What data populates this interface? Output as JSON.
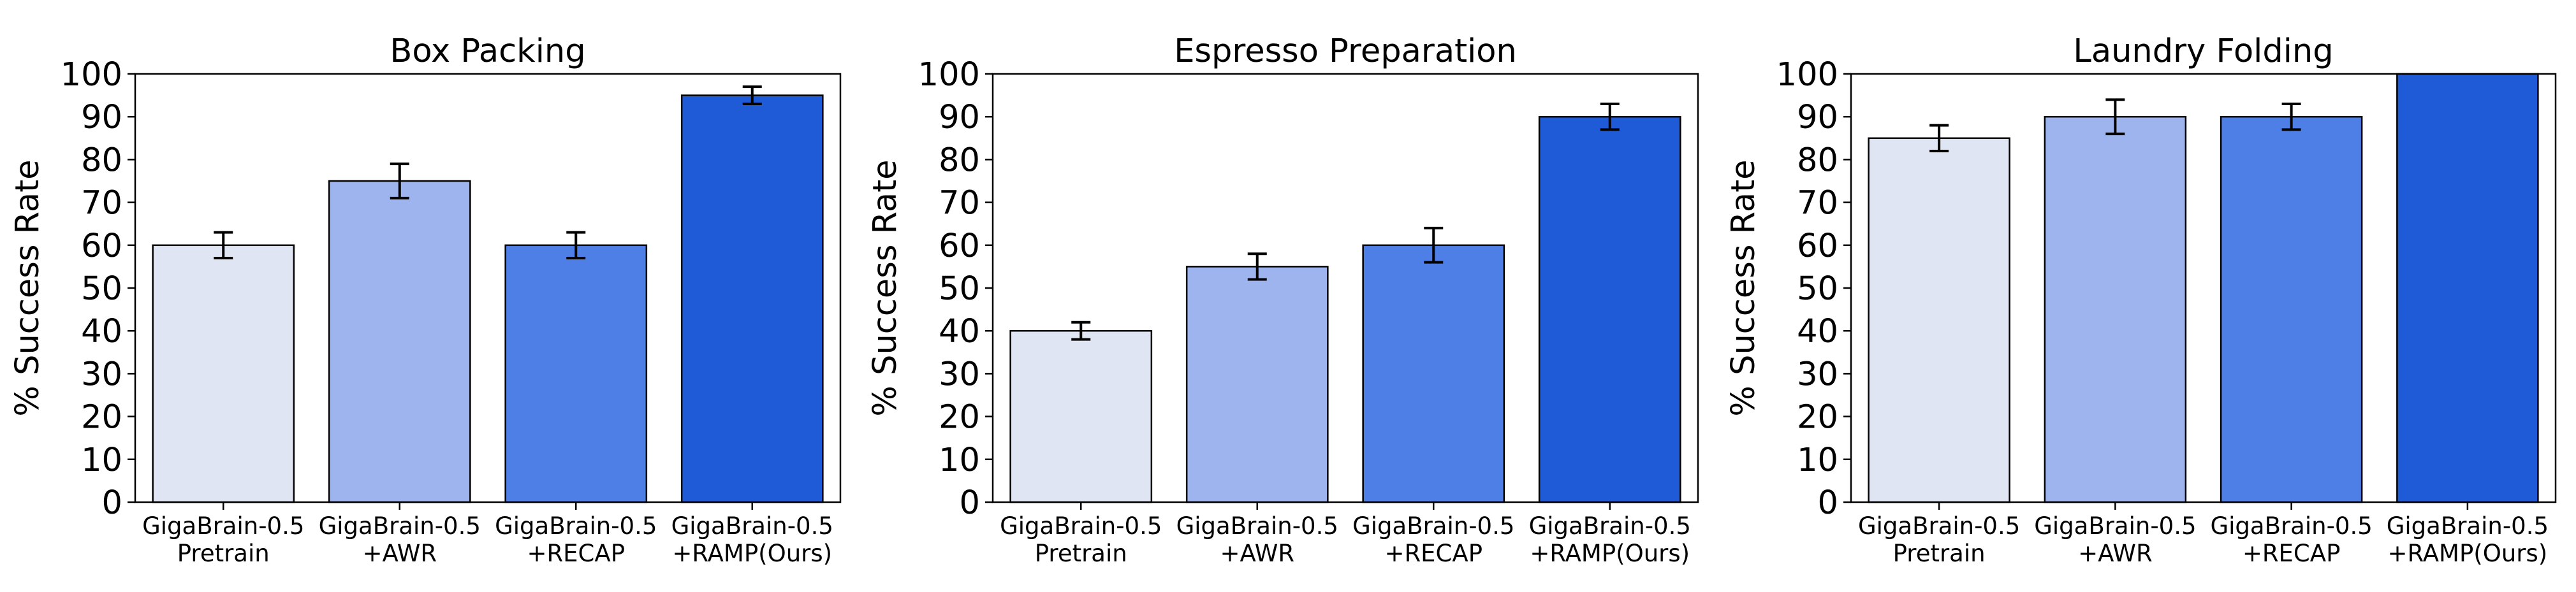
{
  "colors": {
    "pretrain": "#dfe5f2",
    "awr": "#9db4ee",
    "recap": "#4e7fe6",
    "ramp": "#1f5bd6",
    "edge": "#000000"
  },
  "chart_data": [
    {
      "type": "bar",
      "title": "Box Packing",
      "ylabel": "% Success Rate",
      "ylim": [
        0,
        100
      ],
      "yticks": [
        "0",
        "10",
        "20",
        "30",
        "40",
        "50",
        "60",
        "70",
        "80",
        "90",
        "100"
      ],
      "categories": [
        {
          "line1": "GigaBrain-0.5",
          "line2": "Pretrain"
        },
        {
          "line1": "GigaBrain-0.5",
          "line2": "+AWR"
        },
        {
          "line1": "GigaBrain-0.5",
          "line2": "+RECAP"
        },
        {
          "line1": "GigaBrain-0.5",
          "line2": "+RAMP(Ours)"
        }
      ],
      "values": [
        60,
        75,
        60,
        95
      ],
      "errors": [
        3,
        4,
        3,
        2
      ],
      "grid": false
    },
    {
      "type": "bar",
      "title": "Espresso Preparation",
      "ylabel": "% Success Rate",
      "ylim": [
        0,
        100
      ],
      "yticks": [
        "0",
        "10",
        "20",
        "30",
        "40",
        "50",
        "60",
        "70",
        "80",
        "90",
        "100"
      ],
      "categories": [
        {
          "line1": "GigaBrain-0.5",
          "line2": "Pretrain"
        },
        {
          "line1": "GigaBrain-0.5",
          "line2": "+AWR"
        },
        {
          "line1": "GigaBrain-0.5",
          "line2": "+RECAP"
        },
        {
          "line1": "GigaBrain-0.5",
          "line2": "+RAMP(Ours)"
        }
      ],
      "values": [
        40,
        55,
        60,
        90
      ],
      "errors": [
        2,
        3,
        4,
        3
      ],
      "grid": false
    },
    {
      "type": "bar",
      "title": "Laundry Folding",
      "ylabel": "% Success Rate",
      "ylim": [
        0,
        100
      ],
      "yticks": [
        "0",
        "10",
        "20",
        "30",
        "40",
        "50",
        "60",
        "70",
        "80",
        "90",
        "100"
      ],
      "categories": [
        {
          "line1": "GigaBrain-0.5",
          "line2": "Pretrain"
        },
        {
          "line1": "GigaBrain-0.5",
          "line2": "+AWR"
        },
        {
          "line1": "GigaBrain-0.5",
          "line2": "+RECAP"
        },
        {
          "line1": "GigaBrain-0.5",
          "line2": "+RAMP(Ours)"
        }
      ],
      "values": [
        85,
        90,
        90,
        100
      ],
      "errors": [
        3,
        4,
        3,
        0
      ],
      "grid": false
    }
  ]
}
